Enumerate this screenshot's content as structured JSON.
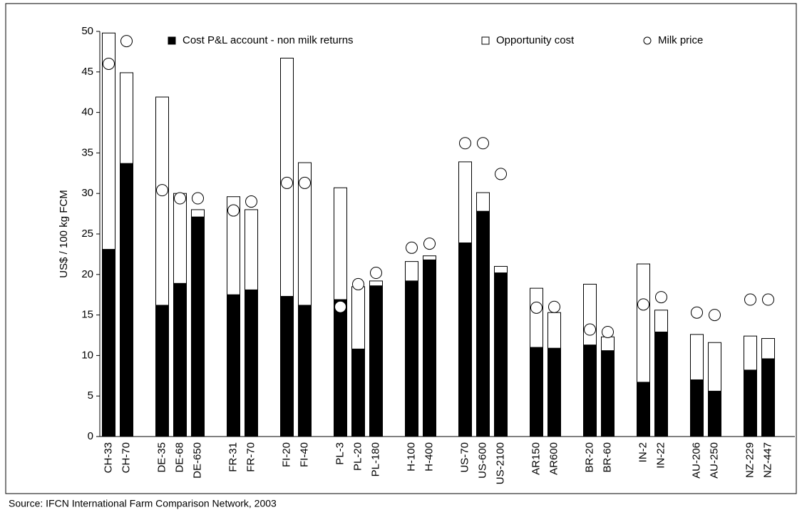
{
  "chart_data": {
    "type": "bar",
    "y_label": "US$  / 100 kg FCM",
    "source": "Source: IFCN International Farm Comparison Network, 2003",
    "categories": [
      "CH-33",
      "CH-70",
      null,
      "DE-35",
      "DE-68",
      "DE-650",
      null,
      "FR-31",
      "FR-70",
      null,
      "FI-20",
      "FI-40",
      null,
      "PL-3",
      "PL-20",
      "PL-180",
      null,
      "H-100",
      "H-400",
      null,
      "US-70",
      "US-600",
      "US-2100",
      null,
      "AR150",
      "AR600",
      null,
      "BR-20",
      "BR-60",
      null,
      "IN-2",
      "IN-22",
      null,
      "AU-206",
      "AU-250",
      null,
      "NZ-229",
      "NZ-447"
    ],
    "series": [
      {
        "name": "Cost P&L account - non milk returns",
        "color": "#000000",
        "marker": "square",
        "values": [
          23.1,
          33.7,
          null,
          16.2,
          18.9,
          27.1,
          null,
          17.5,
          18.1,
          null,
          17.3,
          16.2,
          null,
          16.9,
          10.8,
          18.6,
          null,
          19.2,
          21.8,
          null,
          23.9,
          27.8,
          20.2,
          null,
          11.0,
          10.9,
          null,
          11.3,
          10.6,
          null,
          6.7,
          12.9,
          null,
          7.0,
          5.6,
          null,
          8.2,
          9.6
        ]
      },
      {
        "name": "Opportunity cost",
        "color": "#ffffff",
        "marker": "square",
        "values": [
          26.7,
          11.2,
          null,
          25.7,
          11.1,
          0.9,
          null,
          12.1,
          9.9,
          null,
          29.4,
          17.6,
          null,
          13.8,
          7.7,
          0.6,
          null,
          2.4,
          0.5,
          null,
          10.0,
          2.3,
          0.8,
          null,
          7.3,
          4.4,
          null,
          7.5,
          1.7,
          null,
          14.6,
          2.7,
          null,
          5.6,
          6.0,
          null,
          4.2,
          2.5
        ]
      },
      {
        "name": "Milk price",
        "color": "#ffffff",
        "marker": "circle",
        "values": [
          46.0,
          48.8,
          null,
          30.4,
          29.4,
          29.4,
          null,
          27.9,
          29.0,
          null,
          31.3,
          31.3,
          null,
          16.0,
          18.8,
          20.2,
          null,
          23.3,
          23.8,
          null,
          36.2,
          36.2,
          32.4,
          null,
          15.9,
          16.0,
          null,
          13.2,
          12.9,
          null,
          16.3,
          17.2,
          null,
          15.3,
          15.0,
          null,
          16.9,
          16.9
        ]
      }
    ],
    "ylim": [
      0,
      50
    ],
    "yticks": [
      0,
      5,
      10,
      15,
      20,
      25,
      30,
      35,
      40,
      45,
      50
    ],
    "grid": false
  }
}
